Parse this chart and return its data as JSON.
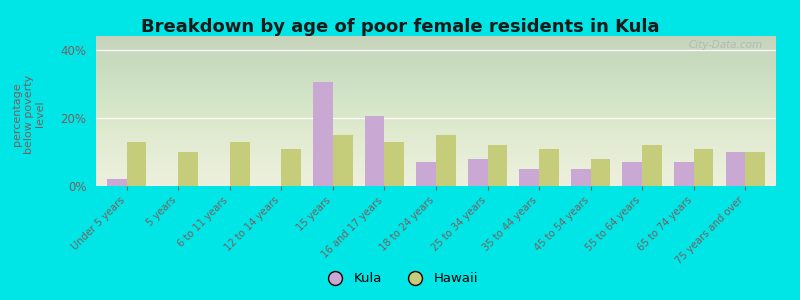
{
  "title": "Breakdown by age of poor female residents in Kula",
  "ylabel": "percentage\nbelow poverty\nlevel",
  "categories": [
    "Under 5 years",
    "5 years",
    "6 to 11 years",
    "12 to 14 years",
    "15 years",
    "16 and 17 years",
    "18 to 24 years",
    "25 to 34 years",
    "35 to 44 years",
    "45 to 54 years",
    "55 to 64 years",
    "65 to 74 years",
    "75 years and over"
  ],
  "kula_values": [
    2.0,
    0.0,
    0.0,
    0.0,
    30.5,
    20.5,
    7.0,
    8.0,
    5.0,
    5.0,
    7.0,
    7.0,
    10.0
  ],
  "hawaii_values": [
    13.0,
    10.0,
    13.0,
    11.0,
    15.0,
    13.0,
    15.0,
    12.0,
    11.0,
    8.0,
    12.0,
    11.0,
    10.0
  ],
  "kula_color": "#c9a8d4",
  "hawaii_color": "#c5cc7a",
  "bg_color": "#00e5e5",
  "plot_bg_color": "#eaedd8",
  "title_color": "#1a1a1a",
  "ylabel_color": "#7a6060",
  "tick_color": "#7a6060",
  "ylim": [
    0,
    44
  ],
  "yticks": [
    0,
    20,
    40
  ],
  "ytick_labels": [
    "0%",
    "20%",
    "40%"
  ],
  "bar_width": 0.38,
  "title_fontsize": 13,
  "legend_kula": "Kula",
  "legend_hawaii": "Hawaii",
  "watermark": "City-Data.com"
}
